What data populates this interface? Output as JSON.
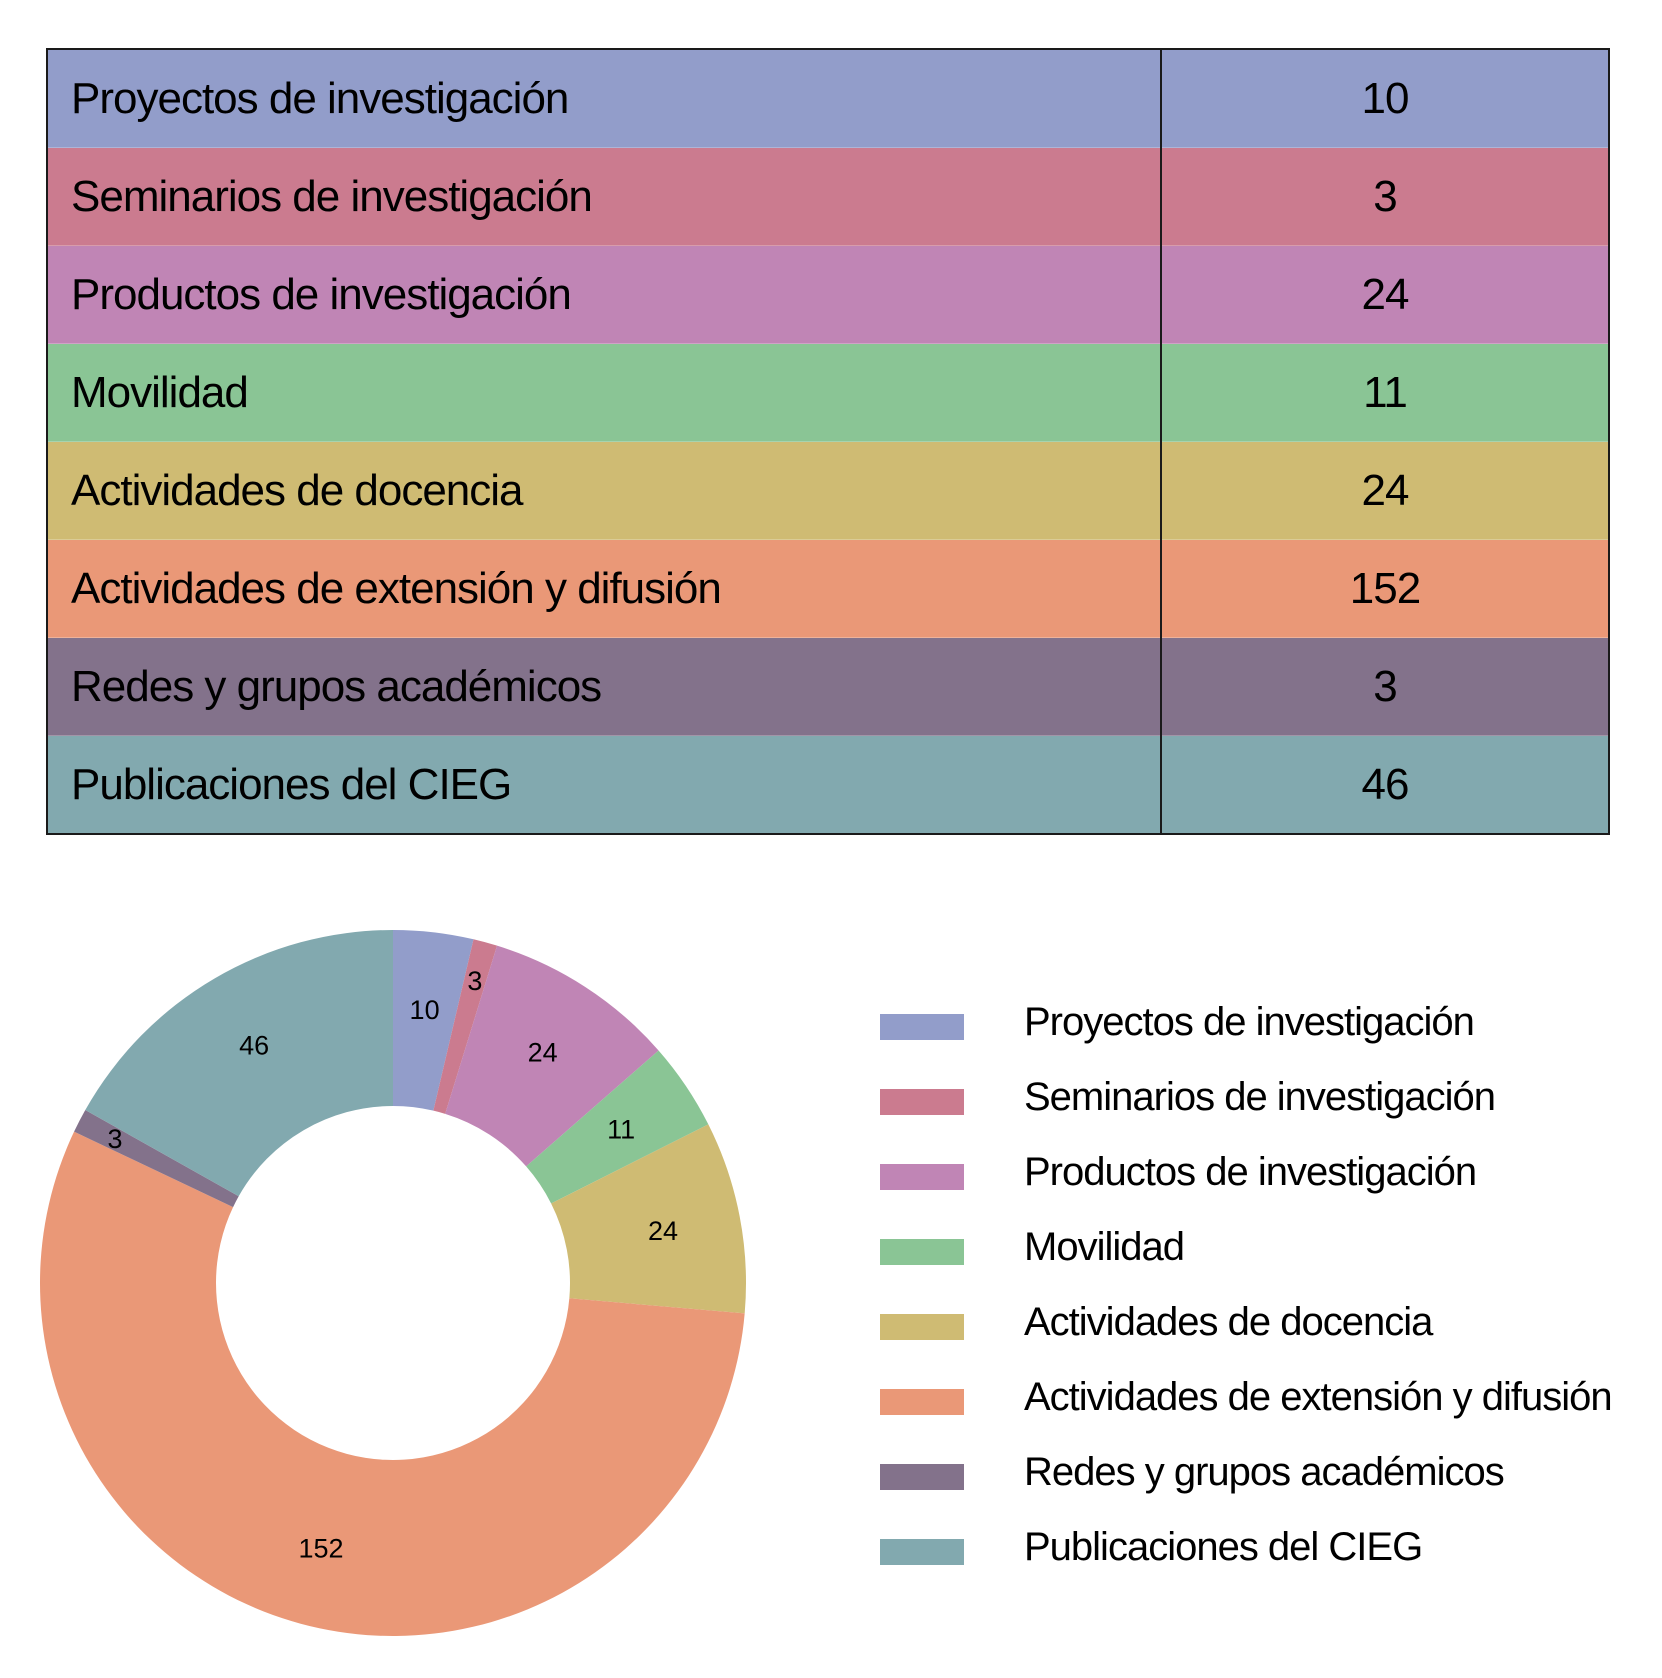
{
  "table": {
    "rows": [
      {
        "label": "Proyectos de investigación",
        "value": "10",
        "color": "#929dca"
      },
      {
        "label": "Seminarios de investigación",
        "value": "3",
        "color": "#cb7b8f"
      },
      {
        "label": "Productos de investigación",
        "value": "24",
        "color": "#c085b5"
      },
      {
        "label": "Movilidad",
        "value": "11",
        "color": "#8ac595"
      },
      {
        "label": "Actividades de docencia",
        "value": "24",
        "color": "#cfbb73"
      },
      {
        "label": "Actividades de extensión y difusión",
        "value": "152",
        "color": "#ea9877"
      },
      {
        "label": "Redes y grupos académicos",
        "value": "3",
        "color": "#83728b"
      },
      {
        "label": "Publicaciones del CIEG",
        "value": "46",
        "color": "#82a9af"
      }
    ]
  },
  "chart_data": {
    "type": "pie",
    "variant": "donut",
    "categories": [
      "Proyectos de investigación",
      "Seminarios de investigación",
      "Productos de investigación",
      "Movilidad",
      "Actividades de docencia",
      "Actividades de extensión y difusión",
      "Redes y grupos académicos",
      "Publicaciones del CIEG"
    ],
    "values": [
      10,
      3,
      24,
      11,
      24,
      152,
      3,
      46
    ],
    "colors": [
      "#929dca",
      "#cb7b8f",
      "#c085b5",
      "#8ac595",
      "#cfbb73",
      "#ea9877",
      "#83728b",
      "#82a9af"
    ],
    "data_labels": [
      "10",
      "3",
      "24",
      "11",
      "24",
      "152",
      "3",
      "46"
    ],
    "legend_position": "right",
    "start_angle": "top",
    "direction": "clockwise"
  }
}
